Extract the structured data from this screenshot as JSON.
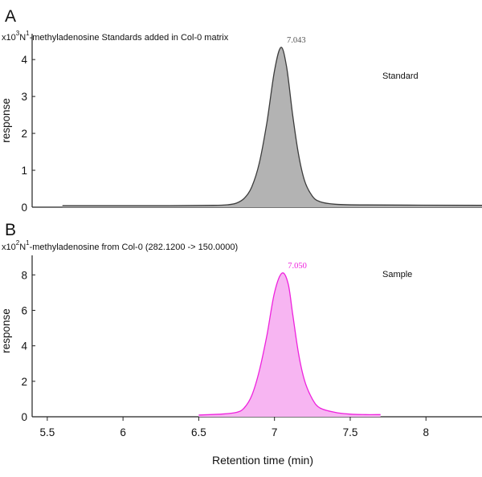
{
  "chart_data": [
    {
      "panel_letter": "A",
      "type": "area",
      "multiplier_base": "x10",
      "multiplier_exp": "3",
      "compound_base": "N",
      "compound_sup": "1",
      "title_rest": "-methyladenosine Standards added in Col-0 matrix",
      "ylabel": "response",
      "yticks": [
        0,
        1,
        2,
        3,
        4
      ],
      "ylim": [
        0,
        4.7
      ],
      "xlim": [
        5.4,
        8.37
      ],
      "annotation": "Standard",
      "peak_label": "7.043",
      "peak_x": 7.043,
      "colors": {
        "fill": "#b3b3b3",
        "line": "#3c3c3c",
        "peak_label": "#555555"
      },
      "trace": [
        [
          5.6,
          0.04
        ],
        [
          6.3,
          0.04
        ],
        [
          6.6,
          0.05
        ],
        [
          6.7,
          0.07
        ],
        [
          6.75,
          0.11
        ],
        [
          6.8,
          0.24
        ],
        [
          6.85,
          0.55
        ],
        [
          6.9,
          1.2
        ],
        [
          6.95,
          2.3
        ],
        [
          7.0,
          3.7
        ],
        [
          7.043,
          4.33
        ],
        [
          7.08,
          3.8
        ],
        [
          7.12,
          2.5
        ],
        [
          7.16,
          1.4
        ],
        [
          7.2,
          0.7
        ],
        [
          7.25,
          0.3
        ],
        [
          7.3,
          0.15
        ],
        [
          7.4,
          0.08
        ],
        [
          7.6,
          0.06
        ],
        [
          8.37,
          0.05
        ]
      ]
    },
    {
      "panel_letter": "B",
      "type": "area",
      "multiplier_base": "x10",
      "multiplier_exp": "2",
      "compound_base": "N",
      "compound_sup": "1",
      "title_rest": "-methyladenosine from Col-0 (282.1200 -> 150.0000)",
      "ylabel": "response",
      "yticks": [
        0,
        2,
        4,
        6,
        8
      ],
      "ylim": [
        0,
        9.1
      ],
      "xlim": [
        5.4,
        8.37
      ],
      "xlabel": "Retention time (min)",
      "xticks": [
        5.5,
        6,
        6.5,
        7,
        7.5,
        8
      ],
      "annotation": "Sample",
      "peak_label": "7.050",
      "peak_x": 7.05,
      "colors": {
        "fill": "#f7b5f2",
        "line": "#ee22dd",
        "peak_label": "#ee22dd"
      },
      "trace": [
        [
          6.5,
          0.1
        ],
        [
          6.65,
          0.15
        ],
        [
          6.75,
          0.25
        ],
        [
          6.8,
          0.5
        ],
        [
          6.85,
          1.2
        ],
        [
          6.9,
          2.6
        ],
        [
          6.95,
          4.6
        ],
        [
          7.0,
          7.0
        ],
        [
          7.05,
          8.1
        ],
        [
          7.09,
          7.5
        ],
        [
          7.12,
          5.8
        ],
        [
          7.16,
          3.5
        ],
        [
          7.2,
          2.0
        ],
        [
          7.25,
          1.0
        ],
        [
          7.3,
          0.5
        ],
        [
          7.4,
          0.25
        ],
        [
          7.5,
          0.15
        ],
        [
          7.6,
          0.12
        ],
        [
          7.7,
          0.12
        ]
      ]
    }
  ]
}
